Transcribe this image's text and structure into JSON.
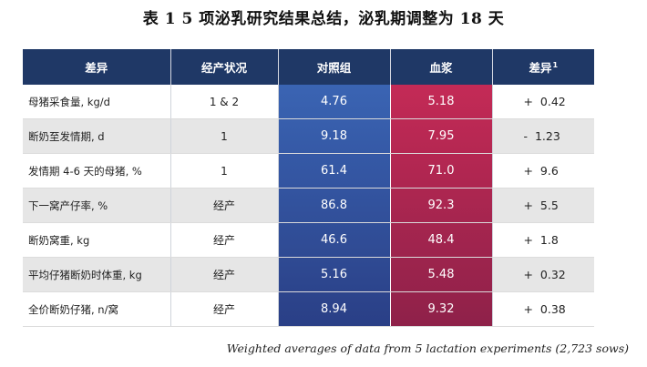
{
  "title": "表 1  5 项泌乳研究结果总结，泌乳期调整为 18 天",
  "table": {
    "headers": [
      "差异",
      "经产状况",
      "对照组",
      "血浆",
      "差异"
    ],
    "header_sup": "1",
    "rows": [
      {
        "label": "母猪采食量, kg/d",
        "status": "1 & 2",
        "control": "4.76",
        "plasma": "5.18",
        "diff": "+  0.42"
      },
      {
        "label": "断奶至发情期, d",
        "status": "1",
        "control": "9.18",
        "plasma": "7.95",
        "diff": "-  1.23"
      },
      {
        "label": "发情期 4-6 天的母猪, %",
        "status": "1",
        "control": "61.4",
        "plasma": "71.0",
        "diff": "+  9.6"
      },
      {
        "label": "下一窝产仔率, %",
        "status": "经产",
        "control": "86.8",
        "plasma": "92.3",
        "diff": "+  5.5"
      },
      {
        "label": "断奶窝重, kg",
        "status": "经产",
        "control": "46.6",
        "plasma": "48.4",
        "diff": "+  1.8"
      },
      {
        "label": "平均仔猪断奶时体重, kg",
        "status": "经产",
        "control": "5.16",
        "plasma": "5.48",
        "diff": "+  0.32"
      },
      {
        "label": "全价断奶仔猪, n/窝",
        "status": "经产",
        "control": "8.94",
        "plasma": "9.32",
        "diff": "+  0.38"
      }
    ]
  },
  "footnote": "Weighted averages of data from 5 lactation experiments (2,723 sows)",
  "colors": {
    "header_bg": "#1f3866",
    "control_light": "#3a64b3",
    "control_dark": "#2a3f86",
    "plasma_light": "#c42a56",
    "plasma_dark": "#8e2149"
  }
}
